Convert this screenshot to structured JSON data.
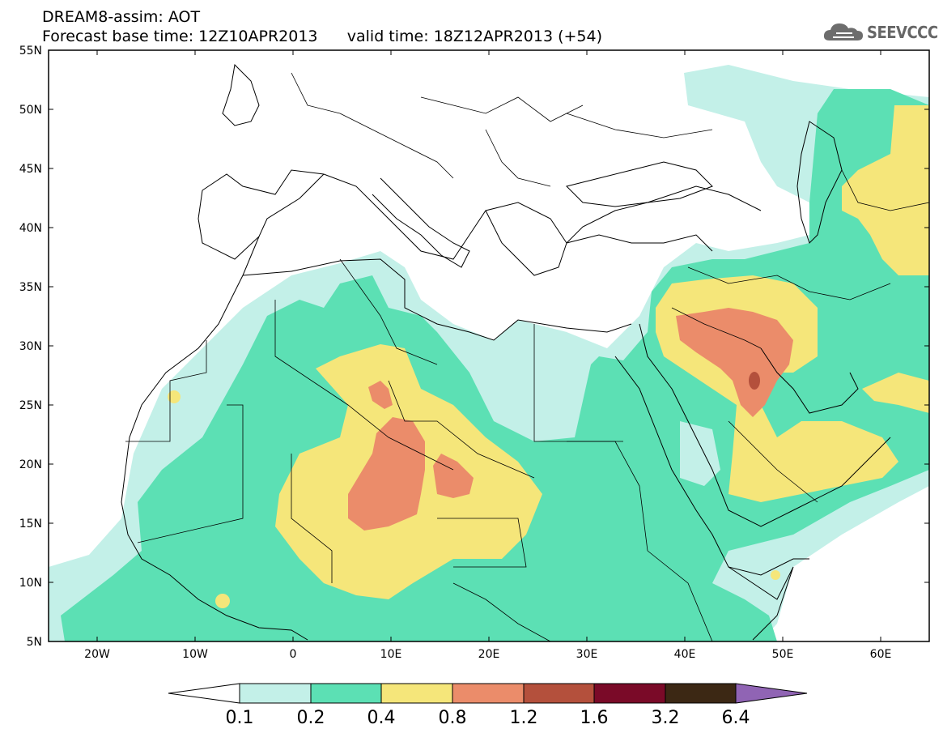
{
  "header": {
    "title_line1": "DREAM8-assim: AOT",
    "title_line2": "Forecast base time: 12Z10APR2013      valid time: 18Z12APR2013 (+54)",
    "logo_text": "SEEVCCC"
  },
  "map": {
    "lat_labels": [
      "55N",
      "50N",
      "45N",
      "40N",
      "35N",
      "30N",
      "25N",
      "20N",
      "15N",
      "10N",
      "5N"
    ],
    "lon_labels": [
      "20W",
      "10W",
      "0",
      "10E",
      "20E",
      "30E",
      "40E",
      "50E",
      "60E"
    ],
    "lon_range": [
      -25,
      65
    ],
    "lat_range": [
      5,
      55
    ]
  },
  "colorbar": {
    "labels": [
      "0.1",
      "0.2",
      "0.4",
      "0.8",
      "1.2",
      "1.6",
      "3.2",
      "6.4"
    ],
    "colors": [
      "#ffffff",
      "#c3f0e8",
      "#5ce0b4",
      "#f5e67a",
      "#eb8c6a",
      "#b4503c",
      "#7a0a28",
      "#3c2814",
      "#9064b4"
    ]
  },
  "colors": {
    "level_0.1": "#c3f0e8",
    "level_0.2": "#5ce0b4",
    "level_0.4": "#f5e67a",
    "level_0.8": "#eb8c6a",
    "level_1.2": "#b4503c"
  }
}
